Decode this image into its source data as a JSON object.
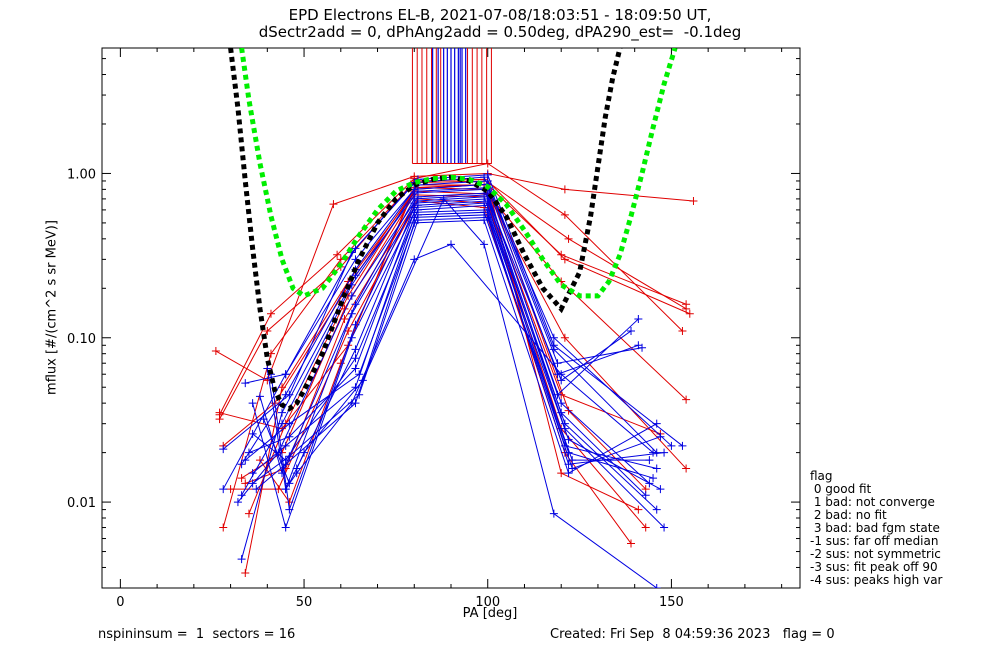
{
  "header": {
    "line1": "EPD Electrons EL-B, 2021-07-08/18:03:51 - 18:09:50 UT,",
    "line2": "dSectr2add = 0, dPhAng2add = 0.50deg, dPA290_est=  -0.1deg"
  },
  "footer": {
    "left": "nspininsum =  1  sectors = 16",
    "right": "Created: Fri Sep  8 04:59:36 2023   flag = 0"
  },
  "legend": {
    "title": "flag",
    "items": [
      " 0 good fit",
      " 1 bad: not converge",
      " 2 bad: no fit",
      " 3 bad: bad fgm state",
      "-1 sus: far off median",
      "-2 sus: not symmetric",
      "-3 sus: fit peak off 90",
      "-4 sus: peaks high var"
    ]
  },
  "chart_data": {
    "type": "line",
    "xlabel": "PA [deg]",
    "ylabel": "mflux [#/(cm^2 s sr MeV)]",
    "xlim": [
      -5,
      185
    ],
    "ylim": [
      0.003,
      5.8
    ],
    "y_scale": "log",
    "x_ticks": [
      0,
      50,
      100,
      150
    ],
    "x_ticklabels": [
      "0",
      "50",
      "100",
      "150"
    ],
    "y_ticks": [
      0.01,
      0.1,
      1.0
    ],
    "y_ticklabels": [
      "0.01",
      "0.10",
      "1.00"
    ],
    "colors": {
      "red": "#e00000",
      "blue": "#0000e0",
      "green": "#00ee00",
      "black": "#000000"
    },
    "series_red": [
      {
        "x": [
          26,
          40,
          58,
          80,
          100,
          121,
          156
        ],
        "y": [
          0.083,
          0.055,
          0.65,
          0.96,
          1.0,
          0.8,
          0.68
        ]
      },
      {
        "x": [
          27,
          41,
          59,
          80,
          100,
          121,
          153
        ],
        "y": [
          0.034,
          0.14,
          0.32,
          0.93,
          1.15,
          0.56,
          0.11
        ]
      },
      {
        "x": [
          27,
          40,
          60,
          80,
          99,
          122,
          154
        ],
        "y": [
          0.032,
          0.11,
          0.27,
          0.9,
          0.92,
          0.4,
          0.15
        ]
      },
      {
        "x": [
          28,
          42,
          61,
          81,
          100,
          120,
          154
        ],
        "y": [
          0.022,
          0.04,
          0.19,
          0.85,
          0.85,
          0.32,
          0.16
        ]
      },
      {
        "x": [
          28,
          41,
          60,
          80,
          100,
          121,
          155
        ],
        "y": [
          0.007,
          0.08,
          0.3,
          0.88,
          0.9,
          0.3,
          0.14
        ]
      },
      {
        "x": [
          34,
          44,
          62,
          81,
          99,
          120,
          154
        ],
        "y": [
          0.0037,
          0.05,
          0.22,
          0.82,
          0.8,
          0.22,
          0.042
        ]
      },
      {
        "x": [
          35,
          45,
          62,
          80,
          100,
          121,
          154
        ],
        "y": [
          0.0085,
          0.03,
          0.18,
          0.78,
          0.75,
          0.1,
          0.016
        ]
      },
      {
        "x": [
          33,
          44,
          61,
          80,
          100,
          120,
          147
        ],
        "y": [
          0.014,
          0.02,
          0.15,
          0.74,
          0.72,
          0.045,
          0.026
        ]
      },
      {
        "x": [
          34,
          45,
          61,
          81,
          100,
          120,
          143
        ],
        "y": [
          0.013,
          0.016,
          0.13,
          0.7,
          0.66,
          0.028,
          0.007
        ]
      },
      {
        "x": [
          30,
          43,
          62,
          81,
          99,
          121,
          139
        ],
        "y": [
          0.012,
          0.012,
          0.11,
          0.68,
          0.62,
          0.02,
          0.0056
        ]
      },
      {
        "x": [
          27,
          44,
          62,
          80,
          100,
          120,
          141
        ],
        "y": [
          0.035,
          0.028,
          0.09,
          0.8,
          0.86,
          0.015,
          0.009
        ]
      },
      {
        "x": [
          38,
          46,
          60,
          80,
          100,
          122,
          143
        ],
        "y": [
          0.018,
          0.01,
          0.07,
          0.82,
          0.86,
          0.036,
          0.012
        ]
      }
    ],
    "series_blue": [
      {
        "x": [
          28,
          45,
          64,
          81,
          100,
          118,
          153
        ],
        "y": [
          0.012,
          0.06,
          0.35,
          0.92,
          0.98,
          0.09,
          0.022
        ]
      },
      {
        "x": [
          28,
          46,
          63,
          80,
          99,
          118,
          150
        ],
        "y": [
          0.021,
          0.045,
          0.33,
          0.88,
          0.95,
          0.1,
          0.022
        ]
      },
      {
        "x": [
          34,
          45,
          64,
          81,
          100,
          118,
          146
        ],
        "y": [
          0.053,
          0.06,
          0.3,
          0.85,
          0.9,
          0.085,
          0.02
        ]
      },
      {
        "x": [
          33,
          45,
          64,
          80,
          100,
          119,
          142
        ],
        "y": [
          0.017,
          0.045,
          0.26,
          0.8,
          0.86,
          0.07,
          0.087
        ]
      },
      {
        "x": [
          33,
          44,
          64,
          81,
          100,
          119,
          141
        ],
        "y": [
          0.0045,
          0.035,
          0.24,
          0.78,
          0.82,
          0.06,
          0.09
        ]
      },
      {
        "x": [
          33,
          44,
          63,
          80,
          99,
          120,
          139
        ],
        "y": [
          0.011,
          0.03,
          0.21,
          0.76,
          0.8,
          0.055,
          0.11
        ]
      },
      {
        "x": [
          32,
          43,
          63,
          81,
          100,
          119,
          141
        ],
        "y": [
          0.01,
          0.02,
          0.18,
          0.72,
          0.76,
          0.045,
          0.13
        ]
      },
      {
        "x": [
          38,
          44,
          64,
          80,
          100,
          120,
          144
        ],
        "y": [
          0.044,
          0.015,
          0.16,
          0.7,
          0.74,
          0.04,
          0.013
        ]
      },
      {
        "x": [
          40,
          45,
          63,
          81,
          99,
          120,
          143
        ],
        "y": [
          0.065,
          0.012,
          0.14,
          0.68,
          0.72,
          0.035,
          0.011
        ]
      },
      {
        "x": [
          41,
          46,
          64,
          80,
          100,
          121,
          146
        ],
        "y": [
          0.06,
          0.009,
          0.12,
          0.66,
          0.7,
          0.03,
          0.009
        ]
      },
      {
        "x": [
          36,
          45,
          63,
          81,
          100,
          121,
          148
        ],
        "y": [
          0.04,
          0.007,
          0.1,
          0.64,
          0.68,
          0.028,
          0.007
        ]
      },
      {
        "x": [
          39,
          46,
          64,
          80,
          99,
          122,
          147
        ],
        "y": [
          0.032,
          0.013,
          0.085,
          0.62,
          0.66,
          0.024,
          0.012
        ]
      },
      {
        "x": [
          36,
          45,
          64,
          81,
          100,
          121,
          146
        ],
        "y": [
          0.026,
          0.018,
          0.075,
          0.6,
          0.64,
          0.022,
          0.016
        ]
      },
      {
        "x": [
          35,
          46,
          64,
          80,
          100,
          122,
          145
        ],
        "y": [
          0.02,
          0.025,
          0.065,
          0.58,
          0.6,
          0.02,
          0.014
        ]
      },
      {
        "x": [
          34,
          46,
          65,
          81,
          99,
          123,
          144
        ],
        "y": [
          0.018,
          0.03,
          0.06,
          0.56,
          0.58,
          0.018,
          0.018
        ]
      },
      {
        "x": [
          36,
          45,
          64,
          80,
          100,
          122,
          148
        ],
        "y": [
          0.015,
          0.022,
          0.05,
          0.54,
          0.56,
          0.017,
          0.02
        ]
      },
      {
        "x": [
          36,
          46,
          65,
          81,
          100,
          123,
          147
        ],
        "y": [
          0.013,
          0.019,
          0.045,
          0.52,
          0.54,
          0.016,
          0.025
        ]
      },
      {
        "x": [
          37,
          45,
          64,
          80,
          99,
          122,
          146
        ],
        "y": [
          0.012,
          0.017,
          0.04,
          0.5,
          0.52,
          0.015,
          0.03
        ]
      },
      {
        "x": [
          48,
          50,
          66,
          88,
          99,
          118,
          146
        ],
        "y": [
          0.016,
          0.02,
          0.055,
          0.7,
          0.37,
          0.0085,
          0.003
        ]
      },
      {
        "x": [
          45,
          48,
          63,
          80,
          90,
          120,
          145
        ],
        "y": [
          0.012,
          0.015,
          0.04,
          0.3,
          0.37,
          0.06,
          0.02
        ]
      }
    ],
    "black_fit": {
      "x": [
        30,
        32,
        34,
        36,
        38,
        40,
        42,
        44,
        46,
        48,
        50,
        55,
        60,
        65,
        70,
        75,
        80,
        85,
        90,
        95,
        100,
        105,
        110,
        115,
        120,
        125,
        128,
        130,
        132,
        134,
        136
      ],
      "y": [
        5.8,
        2.5,
        0.9,
        0.35,
        0.15,
        0.075,
        0.048,
        0.039,
        0.037,
        0.04,
        0.048,
        0.08,
        0.16,
        0.3,
        0.5,
        0.7,
        0.85,
        0.92,
        0.95,
        0.9,
        0.78,
        0.55,
        0.32,
        0.2,
        0.15,
        0.25,
        0.55,
        1.1,
        2.2,
        3.8,
        5.8
      ]
    },
    "green_fit": {
      "x": [
        33,
        35,
        38,
        41,
        44,
        47,
        50,
        55,
        60,
        65,
        70,
        75,
        80,
        85,
        90,
        95,
        100,
        105,
        110,
        115,
        120,
        125,
        130,
        133,
        136,
        139,
        142,
        145,
        148,
        151
      ],
      "y": [
        5.8,
        2.8,
        1.15,
        0.55,
        0.3,
        0.2,
        0.18,
        0.2,
        0.28,
        0.42,
        0.6,
        0.78,
        0.88,
        0.93,
        0.95,
        0.92,
        0.83,
        0.65,
        0.45,
        0.3,
        0.21,
        0.18,
        0.18,
        0.22,
        0.32,
        0.55,
        1.0,
        1.9,
        3.5,
        5.8
      ]
    },
    "vertical_bars": {
      "red_x": [
        79.5,
        80.8,
        82.1,
        83.4,
        84.7,
        86.0,
        87.2,
        94.5,
        95.8,
        97.1,
        98.4,
        99.7,
        101.0
      ],
      "blue_x": [
        85.0,
        86.5,
        88.0,
        89.0,
        90.0,
        91.0,
        92.0,
        92.5,
        93.0,
        94.0
      ],
      "y_top": 5.8,
      "y_bottom": 1.15
    }
  }
}
